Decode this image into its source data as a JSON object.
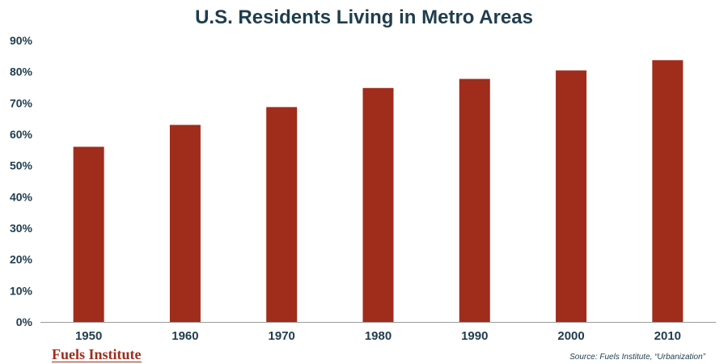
{
  "chart_data": {
    "type": "bar",
    "title": "U.S. Residents Living in Metro Areas",
    "categories": [
      "1950",
      "1960",
      "1970",
      "1980",
      "1990",
      "2000",
      "2010"
    ],
    "values": [
      56,
      63,
      68.7,
      74.8,
      77.7,
      80.4,
      83.7
    ],
    "ylim": [
      0,
      90
    ],
    "yticks": [
      0,
      10,
      20,
      30,
      40,
      50,
      60,
      70,
      80,
      90
    ],
    "ytick_labels": [
      "0%",
      "10%",
      "20%",
      "30%",
      "40%",
      "50%",
      "60%",
      "70%",
      "80%",
      "90%"
    ],
    "xlabel": "",
    "ylabel": "",
    "bar_color": "#a02c1c",
    "grid": false
  },
  "footer": {
    "logo": "Fuels Institute",
    "source": "Source:  Fuels Institute, “Urbanization”"
  },
  "colors": {
    "title": "#1f3d4d",
    "axis": "#9a9a9a",
    "logo": "#a02c1c"
  }
}
